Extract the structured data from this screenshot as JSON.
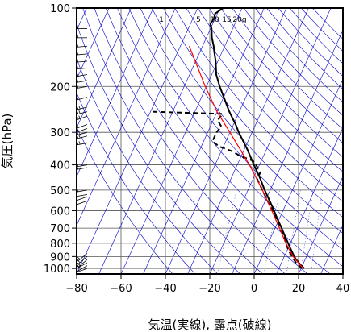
{
  "chart_data": {
    "type": "line",
    "diagram": "skew-T log-p",
    "xlabel": "気温(実線), 露点(破線)",
    "ylabel": "気圧(hPa)",
    "x_ticks": [
      -80,
      -60,
      -40,
      -20,
      0,
      20,
      40
    ],
    "x_tick_labels": [
      "−80",
      "−60",
      "−40",
      "−20",
      "0",
      "20",
      "40"
    ],
    "y_ticks": [
      100,
      200,
      300,
      400,
      500,
      600,
      700,
      800,
      900,
      1000
    ],
    "y_tick_labels": [
      "100",
      "200",
      "300",
      "400",
      "500",
      "600",
      "700",
      "800",
      "900",
      "1000"
    ],
    "xlim": [
      -80,
      40
    ],
    "ylim": [
      1050,
      100
    ],
    "y_scale": "log",
    "grid": true,
    "mixing_ratio_labels": [
      {
        "value": 1,
        "text": "1"
      },
      {
        "value": 5,
        "text": "5"
      },
      {
        "value": 10,
        "text": "10"
      },
      {
        "value": 15,
        "text": "15"
      },
      {
        "value": 20,
        "text": "20g"
      }
    ],
    "colors": {
      "temperature": "#000000",
      "dewpoint": "#000000",
      "parcel": "#ff0000",
      "isotherm": "#0000cc",
      "adiabat": "#0000cc",
      "grid": "#555555"
    },
    "series": [
      {
        "style": "solid",
        "points": [
          [
            1000,
            21.5
          ],
          [
            975,
            19.5
          ],
          [
            950,
            17.8
          ],
          [
            925,
            16.0
          ],
          [
            900,
            14.5
          ],
          [
            850,
            11.8
          ],
          [
            800,
            9.0
          ],
          [
            750,
            6.0
          ],
          [
            700,
            3.0
          ],
          [
            650,
            -0.5
          ],
          [
            600,
            -4.0
          ],
          [
            550,
            -8.0
          ],
          [
            500,
            -12.5
          ],
          [
            450,
            -17.0
          ],
          [
            400,
            -22.5
          ],
          [
            350,
            -28.5
          ],
          [
            300,
            -36.0
          ],
          [
            280,
            -39.0
          ],
          [
            250,
            -44.5
          ],
          [
            200,
            -54.0
          ],
          [
            180,
            -58.0
          ],
          [
            160,
            -61.0
          ],
          [
            150,
            -63.0
          ],
          [
            140,
            -65.0
          ],
          [
            130,
            -67.5
          ],
          [
            120,
            -69.5
          ],
          [
            115,
            -71.0
          ],
          [
            110,
            -70.5
          ],
          [
            105,
            -71.0
          ],
          [
            100,
            -68.5
          ]
        ]
      },
      {
        "style": "dashed",
        "points": [
          [
            1000,
            20.5
          ],
          [
            975,
            18.5
          ],
          [
            950,
            16.5
          ],
          [
            925,
            15.0
          ],
          [
            900,
            13.5
          ],
          [
            850,
            10.5
          ],
          [
            800,
            8.0
          ],
          [
            750,
            5.5
          ],
          [
            700,
            2.0
          ],
          [
            650,
            -1.0
          ],
          [
            600,
            -4.5
          ],
          [
            550,
            -9.0
          ],
          [
            500,
            -13.5
          ],
          [
            450,
            -18.5
          ],
          [
            430,
            -18.0
          ],
          [
            400,
            -21.5
          ],
          [
            385,
            -24.0
          ],
          [
            370,
            -30.5
          ],
          [
            355,
            -35.0
          ],
          [
            340,
            -42.0
          ],
          [
            325,
            -46.0
          ],
          [
            300,
            -46.0
          ],
          [
            285,
            -45.0
          ],
          [
            270,
            -48.0
          ],
          [
            255,
            -47.0
          ],
          [
            250,
            -80.0
          ]
        ]
      },
      {
        "style": "parcel",
        "points": [
          [
            1000,
            21.0
          ],
          [
            900,
            14.0
          ],
          [
            800,
            8.0
          ],
          [
            700,
            2.0
          ],
          [
            600,
            -5.0
          ],
          [
            500,
            -13.5
          ],
          [
            400,
            -24.5
          ],
          [
            300,
            -40.0
          ],
          [
            250,
            -50.0
          ],
          [
            200,
            -60.5
          ],
          [
            150,
            -73.0
          ],
          [
            140,
            -76.0
          ]
        ]
      }
    ],
    "wind_barbs": [
      {
        "p": 1000,
        "dir": 250,
        "spd": 10
      },
      {
        "p": 975,
        "dir": 240,
        "spd": 10
      },
      {
        "p": 950,
        "dir": 240,
        "spd": 15
      },
      {
        "p": 925,
        "dir": 230,
        "spd": 20
      },
      {
        "p": 900,
        "dir": 230,
        "spd": 20
      },
      {
        "p": 875,
        "dir": 230,
        "spd": 15
      },
      {
        "p": 550,
        "dir": 250,
        "spd": 10
      },
      {
        "p": 530,
        "dir": 250,
        "spd": 10
      },
      {
        "p": 520,
        "dir": 260,
        "spd": 10
      },
      {
        "p": 500,
        "dir": 260,
        "spd": 15
      },
      {
        "p": 410,
        "dir": 260,
        "spd": 20
      },
      {
        "p": 400,
        "dir": 260,
        "spd": 20
      },
      {
        "p": 330,
        "dir": 260,
        "spd": 25
      },
      {
        "p": 310,
        "dir": 255,
        "spd": 25
      },
      {
        "p": 300,
        "dir": 255,
        "spd": 20
      },
      {
        "p": 290,
        "dir": 250,
        "spd": 20
      },
      {
        "p": 280,
        "dir": 250,
        "spd": 20
      },
      {
        "p": 260,
        "dir": 250,
        "spd": 25
      },
      {
        "p": 250,
        "dir": 255,
        "spd": 25
      },
      {
        "p": 240,
        "dir": 255,
        "spd": 25
      },
      {
        "p": 220,
        "dir": 255,
        "spd": 20
      },
      {
        "p": 200,
        "dir": 260,
        "spd": 20
      },
      {
        "p": 190,
        "dir": 260,
        "spd": 20
      },
      {
        "p": 180,
        "dir": 260,
        "spd": 15
      },
      {
        "p": 170,
        "dir": 265,
        "spd": 20
      },
      {
        "p": 160,
        "dir": 265,
        "spd": 20
      },
      {
        "p": 150,
        "dir": 265,
        "spd": 15
      },
      {
        "p": 140,
        "dir": 265,
        "spd": 15
      },
      {
        "p": 130,
        "dir": 270,
        "spd": 15
      },
      {
        "p": 120,
        "dir": 270,
        "spd": 15
      },
      {
        "p": 110,
        "dir": 270,
        "spd": 10
      },
      {
        "p": 100,
        "dir": 270,
        "spd": 10
      }
    ]
  }
}
